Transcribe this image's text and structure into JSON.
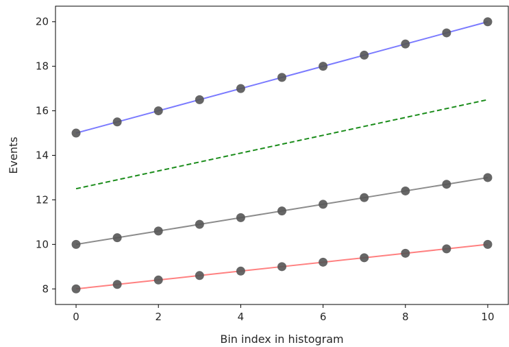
{
  "chart_data": {
    "type": "line",
    "xlabel": "Bin index in histogram",
    "ylabel": "Events",
    "xlim": [
      -0.5,
      10.5
    ],
    "ylim": [
      7.3,
      20.7
    ],
    "xticks": [
      0,
      2,
      4,
      6,
      8,
      10
    ],
    "yticks": [
      8,
      10,
      12,
      14,
      16,
      18,
      20
    ],
    "grid": false,
    "legend": false,
    "series": [
      {
        "line_color": "#7a7aff",
        "marker_color": "#555555",
        "style": "solid",
        "markers": true,
        "x": [
          0,
          1,
          2,
          3,
          4,
          5,
          6,
          7,
          8,
          9,
          10
        ],
        "values": [
          15,
          15.5,
          16,
          16.5,
          17,
          17.5,
          18,
          18.5,
          19,
          19.5,
          20
        ]
      },
      {
        "line_color": "#1a8c1a",
        "style": "dashed",
        "markers": false,
        "x": [
          0,
          10
        ],
        "values": [
          12.5,
          16.5
        ]
      },
      {
        "line_color": "#8c8c8c",
        "marker_color": "#555555",
        "style": "solid",
        "markers": true,
        "x": [
          0,
          1,
          2,
          3,
          4,
          5,
          6,
          7,
          8,
          9,
          10
        ],
        "values": [
          10,
          10.3,
          10.6,
          10.9,
          11.2,
          11.5,
          11.8,
          12.1,
          12.4,
          12.7,
          13
        ]
      },
      {
        "line_color": "#ff8080",
        "marker_color": "#555555",
        "style": "solid",
        "markers": true,
        "x": [
          0,
          1,
          2,
          3,
          4,
          5,
          6,
          7,
          8,
          9,
          10
        ],
        "values": [
          8,
          8.2,
          8.4,
          8.6,
          8.8,
          9,
          9.2,
          9.4,
          9.6,
          9.8,
          10
        ]
      }
    ]
  }
}
